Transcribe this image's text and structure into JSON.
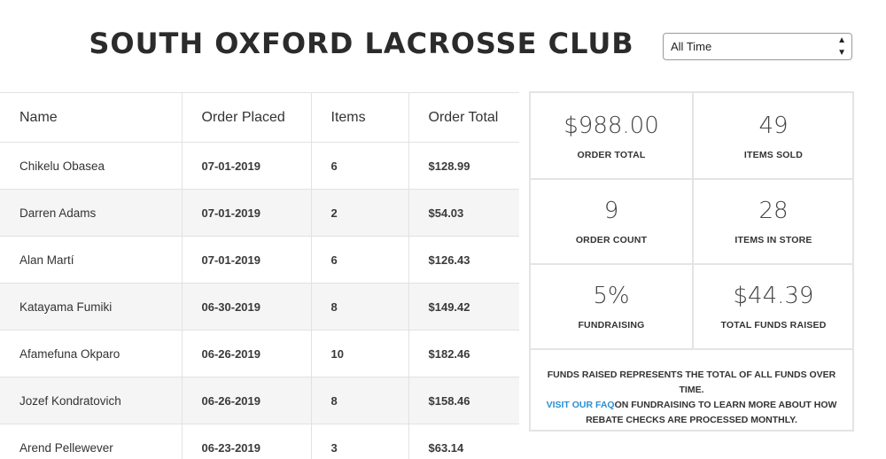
{
  "header": {
    "title": "SOUTH OXFORD LACROSSE CLUB",
    "filter_selected": "All Time"
  },
  "table": {
    "columns": [
      "Name",
      "Order Placed",
      "Items",
      "Order Total"
    ],
    "rows": [
      {
        "name": "Chikelu Obasea",
        "date": "07-01-2019",
        "items": "6",
        "total": "$128.99"
      },
      {
        "name": "Darren Adams",
        "date": "07-01-2019",
        "items": "2",
        "total": "$54.03"
      },
      {
        "name": "Alan Martí",
        "date": "07-01-2019",
        "items": "6",
        "total": "$126.43"
      },
      {
        "name": "Katayama Fumiki",
        "date": "06-30-2019",
        "items": "8",
        "total": "$149.42"
      },
      {
        "name": "Afamefuna Okparo",
        "date": "06-26-2019",
        "items": "10",
        "total": "$182.46"
      },
      {
        "name": "Jozef Kondratovich",
        "date": "06-26-2019",
        "items": "8",
        "total": "$158.46"
      },
      {
        "name": "Arend Pellewever",
        "date": "06-23-2019",
        "items": "3",
        "total": "$63.14"
      }
    ]
  },
  "stats": {
    "order_total": {
      "value": "$988.00",
      "label": "ORDER TOTAL"
    },
    "items_sold": {
      "value": "49",
      "label": "ITEMS SOLD"
    },
    "order_count": {
      "value": "9",
      "label": "ORDER COUNT"
    },
    "items_in_store": {
      "value": "28",
      "label": "ITEMS IN STORE"
    },
    "fundraising": {
      "value": "5%",
      "label": "FUNDRAISING"
    },
    "total_funds_raised": {
      "value": "$44.39",
      "label": "TOTAL FUNDS RAISED"
    },
    "note_line1": "FUNDS RAISED REPRESENTS THE TOTAL OF ALL FUNDS OVER TIME.",
    "note_link": "VISIT OUR FAQ",
    "note_line2": "ON FUNDRAISING TO LEARN MORE ABOUT HOW REBATE CHECKS ARE PROCESSED MONTHLY."
  }
}
